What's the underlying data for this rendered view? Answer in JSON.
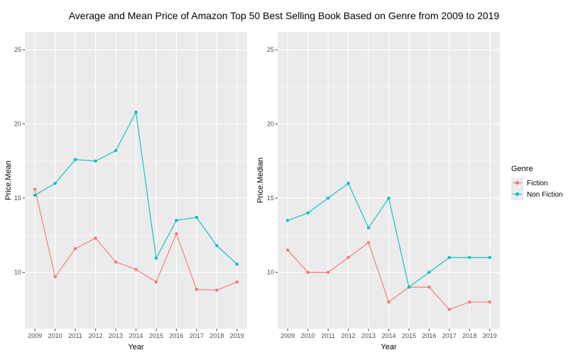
{
  "figure": {
    "title": "Average and Mean Price of Amazon Top 50 Best Selling Book Based on Genre from 2009 to 2019"
  },
  "legend": {
    "title": "Genre",
    "placement": "right",
    "items": [
      {
        "label": "Fiction",
        "color": "#F8766D"
      },
      {
        "label": "Non Fiction",
        "color": "#00BFC4"
      }
    ]
  },
  "chart_data": [
    {
      "type": "line",
      "xlabel": "Year",
      "ylabel": "Price.Mean",
      "x": [
        2009,
        2010,
        2011,
        2012,
        2013,
        2014,
        2015,
        2016,
        2017,
        2018,
        2019
      ],
      "ylim": [
        6.2,
        26.2
      ],
      "yticks": [
        10,
        15,
        20,
        25
      ],
      "grid": true,
      "series": [
        {
          "name": "Fiction",
          "color": "#F8766D",
          "values": [
            15.6,
            9.7,
            11.6,
            12.3,
            10.7,
            10.2,
            9.35,
            12.6,
            8.85,
            8.8,
            9.35
          ]
        },
        {
          "name": "Non Fiction",
          "color": "#00BFC4",
          "values": [
            15.2,
            16.0,
            17.6,
            17.5,
            18.2,
            20.8,
            10.95,
            13.5,
            13.7,
            11.8,
            10.55
          ]
        }
      ]
    },
    {
      "type": "line",
      "xlabel": "Year",
      "ylabel": "Price.Median",
      "x": [
        2009,
        2010,
        2011,
        2012,
        2013,
        2014,
        2015,
        2016,
        2017,
        2018,
        2019
      ],
      "ylim": [
        6.2,
        26.2
      ],
      "yticks": [
        10,
        15,
        20,
        25
      ],
      "grid": true,
      "series": [
        {
          "name": "Fiction",
          "color": "#F8766D",
          "values": [
            11.5,
            10,
            10,
            11,
            12,
            8,
            9,
            9,
            7.5,
            8,
            8
          ]
        },
        {
          "name": "Non Fiction",
          "color": "#00BFC4",
          "values": [
            13.5,
            14,
            15,
            16,
            13,
            15,
            9,
            10,
            11,
            11,
            11
          ]
        }
      ]
    }
  ]
}
